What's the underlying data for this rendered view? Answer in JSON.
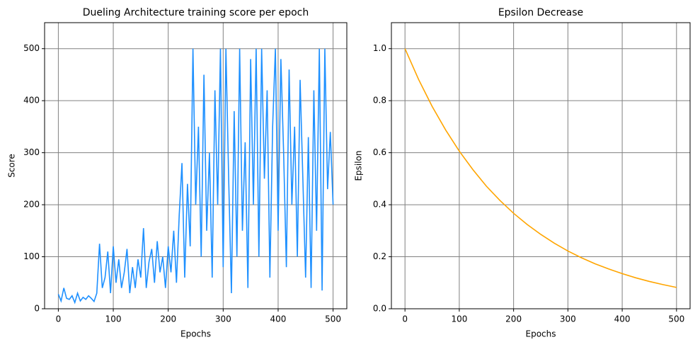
{
  "chart_data": [
    {
      "type": "line",
      "title": "Dueling Architecture training score per epoch",
      "x_label": "Epochs",
      "y_label": "Score",
      "x": [
        0,
        5,
        10,
        15,
        20,
        25,
        30,
        35,
        40,
        45,
        50,
        55,
        60,
        65,
        70,
        75,
        80,
        85,
        90,
        95,
        100,
        105,
        110,
        115,
        120,
        125,
        130,
        135,
        140,
        145,
        150,
        155,
        160,
        165,
        170,
        175,
        180,
        185,
        190,
        195,
        200,
        205,
        210,
        215,
        220,
        225,
        230,
        235,
        240,
        245,
        250,
        255,
        260,
        265,
        270,
        275,
        280,
        285,
        290,
        295,
        300,
        305,
        310,
        315,
        320,
        325,
        330,
        335,
        340,
        345,
        350,
        355,
        360,
        365,
        370,
        375,
        380,
        385,
        390,
        395,
        400,
        405,
        410,
        415,
        420,
        425,
        430,
        435,
        440,
        445,
        450,
        455,
        460,
        465,
        470,
        475,
        480,
        485,
        490,
        495,
        500
      ],
      "series": [
        {
          "name": "Score",
          "color": "#1e90ff",
          "values": [
            28,
            15,
            40,
            20,
            18,
            25,
            12,
            30,
            15,
            22,
            18,
            25,
            20,
            14,
            30,
            125,
            40,
            60,
            110,
            30,
            120,
            50,
            95,
            40,
            70,
            115,
            30,
            80,
            40,
            95,
            60,
            155,
            40,
            90,
            115,
            50,
            130,
            70,
            100,
            40,
            120,
            70,
            150,
            50,
            180,
            280,
            60,
            240,
            120,
            500,
            200,
            350,
            100,
            450,
            150,
            300,
            60,
            420,
            200,
            500,
            80,
            500,
            250,
            30,
            380,
            100,
            500,
            150,
            320,
            40,
            480,
            200,
            500,
            100,
            500,
            250,
            420,
            60,
            350,
            500,
            150,
            480,
            300,
            80,
            460,
            200,
            350,
            100,
            440,
            250,
            60,
            330,
            40,
            420,
            150,
            500,
            35,
            500,
            230,
            340,
            200
          ]
        }
      ],
      "xlim": [
        -25,
        525
      ],
      "ylim": [
        0,
        550
      ],
      "xticks": [
        0,
        100,
        200,
        300,
        400,
        500
      ],
      "yticks": [
        0,
        100,
        200,
        300,
        400,
        500
      ],
      "grid": true
    },
    {
      "type": "line",
      "title": "Epsilon Decrease",
      "x_label": "Epochs",
      "y_label": "Epsilon",
      "x": [
        0,
        25,
        50,
        75,
        100,
        125,
        150,
        175,
        200,
        225,
        250,
        275,
        300,
        325,
        350,
        375,
        400,
        425,
        450,
        475,
        500
      ],
      "series": [
        {
          "name": "Epsilon",
          "color": "#ffa500",
          "values": [
            1.0,
            0.882,
            0.778,
            0.687,
            0.606,
            0.535,
            0.471,
            0.416,
            0.367,
            0.324,
            0.286,
            0.252,
            0.222,
            0.196,
            0.173,
            0.153,
            0.135,
            0.119,
            0.105,
            0.093,
            0.082
          ]
        }
      ],
      "xlim": [
        -25,
        525
      ],
      "ylim": [
        0,
        1.1
      ],
      "xticks": [
        0,
        100,
        200,
        300,
        400,
        500
      ],
      "yticks": [
        {
          "value": 0,
          "label": "0.0"
        },
        0.2,
        0.4,
        0.6,
        0.8,
        {
          "value": 1,
          "label": "1.0"
        }
      ],
      "grid": true
    }
  ]
}
